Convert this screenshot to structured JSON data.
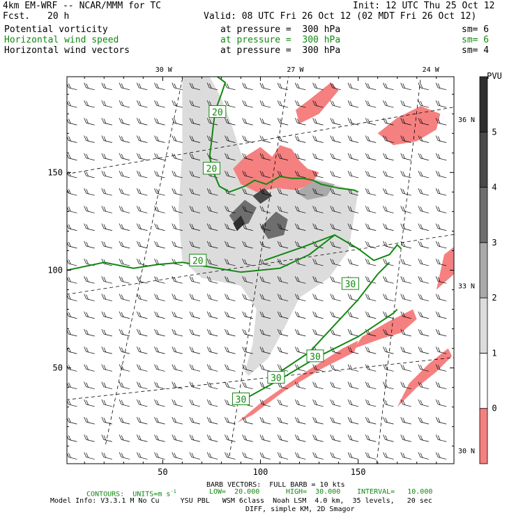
{
  "header": {
    "model_title": "4km EM-WRF -- NCAR/MMM for TC",
    "init": "Init: 12 UTC Thu 25 Oct 12",
    "fcst_label": "Fcst.",
    "fcst_value": "20 h",
    "valid": "Valid: 08 UTC Fri 26 Oct 12 (02 MDT Fri 26 Oct 12)",
    "fields": [
      {
        "name": "Potential vorticity",
        "level": "at pressure =  300 hPa",
        "sm": "sm= 6",
        "color": "#000000"
      },
      {
        "name": "Horizontal wind speed",
        "level": "at pressure =  300 hPa",
        "sm": "sm= 6",
        "color": "#118811"
      },
      {
        "name": "Horizontal wind vectors",
        "level": "at pressure =  300 hPa",
        "sm": "sm= 4",
        "color": "#000000"
      }
    ]
  },
  "footer": {
    "barb": "BARB VECTORS:  FULL BARB = 10 kts",
    "contours": "CONTOURS:  UNITS=m s",
    "contours_sup": "-1",
    "low": "LOW=  20.000",
    "high": "HIGH=  30.000",
    "interval": "INTERVAL=   10.000",
    "model_info": "Model Info: V3.3.1 M No Cu     YSU PBL   WSM 6class  Noah LSM  4.0 km,  35 levels,   20 sec",
    "diff": "DIFF, simple KM, 2D Smagor"
  },
  "chart_data": {
    "type": "heatmap",
    "x_ticks": [
      50,
      100,
      150
    ],
    "y_ticks": [
      50,
      100,
      150
    ],
    "xlim": [
      1,
      199
    ],
    "ylim": [
      1,
      199
    ],
    "lon_labels": [
      "30 W",
      "27 W",
      "24 W"
    ],
    "lat_labels": [
      "36 N",
      "33 N",
      "30 N"
    ],
    "colorbar": {
      "unit": "PVU",
      "ticks": [
        "0",
        "1",
        "2",
        "3",
        "4",
        "5"
      ],
      "bands": [
        {
          "from": -1,
          "to": 0,
          "color": "#f58080"
        },
        {
          "from": 0,
          "to": 1,
          "color": "#ffffff"
        },
        {
          "from": 1,
          "to": 2,
          "color": "#dcdcdc"
        },
        {
          "from": 2,
          "to": 3,
          "color": "#a9a9a9"
        },
        {
          "from": 3,
          "to": 4,
          "color": "#6e6e6e"
        },
        {
          "from": 4,
          "to": 5,
          "color": "#4a4a4a"
        },
        {
          "from": 5,
          "to": 6,
          "color": "#2e2e2e"
        }
      ]
    },
    "contour_labels": [
      {
        "text": "20",
        "x": 78,
        "y": 181
      },
      {
        "text": "20",
        "x": 75,
        "y": 152
      },
      {
        "text": "20",
        "x": 68,
        "y": 105
      },
      {
        "text": "30",
        "x": 146,
        "y": 93
      },
      {
        "text": "30",
        "x": 128,
        "y": 56
      },
      {
        "text": "30",
        "x": 108,
        "y": 45
      },
      {
        "text": "30",
        "x": 90,
        "y": 34
      }
    ],
    "series": [
      {
        "name": "20",
        "color": "#118811",
        "points": [
          [
            78,
            199
          ],
          [
            82,
            196
          ],
          [
            80,
            190
          ],
          [
            77,
            182
          ],
          [
            76,
            175
          ],
          [
            75,
            166
          ],
          [
            74,
            158
          ],
          [
            76,
            150
          ],
          [
            79,
            143
          ],
          [
            84,
            140
          ],
          [
            92,
            143
          ],
          [
            97,
            146
          ],
          [
            103,
            144
          ],
          [
            110,
            148
          ],
          [
            116,
            147
          ],
          [
            122,
            147
          ],
          [
            127,
            146
          ],
          [
            131,
            144
          ],
          [
            140,
            142
          ],
          [
            148,
            141
          ],
          [
            150,
            140
          ]
        ]
      },
      {
        "name": "20",
        "color": "#118811",
        "points": [
          [
            1,
            100
          ],
          [
            20,
            104
          ],
          [
            35,
            101
          ],
          [
            48,
            103
          ],
          [
            60,
            104
          ],
          [
            72,
            102
          ],
          [
            90,
            99
          ],
          [
            110,
            101
          ],
          [
            125,
            108
          ],
          [
            138,
            118
          ]
        ]
      },
      {
        "name": "30",
        "color": "#118811",
        "points": [
          [
            90,
            33
          ],
          [
            108,
            43
          ],
          [
            130,
            56
          ],
          [
            150,
            66
          ],
          [
            168,
            78
          ],
          [
            170,
            80
          ]
        ]
      },
      {
        "name": "30",
        "color": "#118811",
        "points": [
          [
            102,
            105
          ],
          [
            122,
            112
          ],
          [
            138,
            118
          ],
          [
            150,
            111
          ],
          [
            158,
            105
          ],
          [
            166,
            108
          ],
          [
            170,
            113
          ],
          [
            172,
            111
          ]
        ]
      },
      {
        "name": "30",
        "color": "#118811",
        "points": [
          [
            104,
            44
          ],
          [
            125,
            58
          ],
          [
            150,
            85
          ],
          [
            160,
            98
          ],
          [
            166,
            104
          ]
        ]
      }
    ],
    "pv_regions": [
      {
        "level": "1-2",
        "points": [
          [
            60,
            199
          ],
          [
            74,
            199
          ],
          [
            80,
            188
          ],
          [
            85,
            175
          ],
          [
            90,
            160
          ],
          [
            95,
            150
          ],
          [
            108,
            148
          ],
          [
            125,
            148
          ],
          [
            150,
            140
          ],
          [
            145,
            110
          ],
          [
            135,
            96
          ],
          [
            120,
            86
          ],
          [
            112,
            70
          ],
          [
            104,
            55
          ],
          [
            94,
            46
          ],
          [
            92,
            48
          ],
          [
            96,
            62
          ],
          [
            98,
            80
          ],
          [
            90,
            92
          ],
          [
            70,
            96
          ],
          [
            60,
            105
          ],
          [
            58,
            130
          ],
          [
            60,
            160
          ]
        ]
      },
      {
        "level": "-1-0",
        "points": [
          [
            86,
            152
          ],
          [
            92,
            158
          ],
          [
            100,
            163
          ],
          [
            106,
            158
          ],
          [
            110,
            164
          ],
          [
            116,
            162
          ],
          [
            120,
            156
          ],
          [
            124,
            152
          ],
          [
            130,
            150
          ],
          [
            126,
            144
          ],
          [
            118,
            141
          ],
          [
            108,
            142
          ],
          [
            98,
            140
          ],
          [
            90,
            144
          ]
        ]
      },
      {
        "level": "-1-0",
        "points": [
          [
            88,
            22
          ],
          [
            100,
            32
          ],
          [
            120,
            46
          ],
          [
            142,
            60
          ],
          [
            150,
            64
          ],
          [
            148,
            58
          ],
          [
            132,
            50
          ],
          [
            112,
            38
          ],
          [
            96,
            26
          ]
        ]
      },
      {
        "level": "-1-0",
        "points": [
          [
            148,
            60
          ],
          [
            162,
            65
          ],
          [
            172,
            68
          ],
          [
            180,
            75
          ],
          [
            178,
            80
          ],
          [
            166,
            74
          ],
          [
            152,
            66
          ]
        ]
      },
      {
        "level": "-1-0",
        "points": [
          [
            170,
            30
          ],
          [
            180,
            40
          ],
          [
            190,
            48
          ],
          [
            198,
            56
          ],
          [
            196,
            60
          ],
          [
            186,
            52
          ],
          [
            176,
            42
          ]
        ]
      },
      {
        "level": "-1-0",
        "points": [
          [
            160,
            170
          ],
          [
            170,
            178
          ],
          [
            182,
            184
          ],
          [
            192,
            180
          ],
          [
            190,
            172
          ],
          [
            180,
            166
          ],
          [
            168,
            164
          ]
        ]
      },
      {
        "level": "-1-0",
        "points": [
          [
            190,
            90
          ],
          [
            199,
            98
          ],
          [
            199,
            112
          ],
          [
            194,
            108
          ]
        ]
      },
      {
        "level": "-1-0",
        "points": [
          [
            120,
            175
          ],
          [
            130,
            180
          ],
          [
            140,
            192
          ],
          [
            136,
            196
          ],
          [
            126,
            188
          ],
          [
            118,
            182
          ]
        ]
      },
      {
        "level": "2-3",
        "points": [
          [
            118,
            140
          ],
          [
            128,
            146
          ],
          [
            138,
            144
          ],
          [
            134,
            138
          ],
          [
            124,
            136
          ]
        ]
      },
      {
        "level": "3-4",
        "points": [
          [
            84,
            128
          ],
          [
            92,
            136
          ],
          [
            98,
            132
          ],
          [
            94,
            124
          ],
          [
            88,
            122
          ]
        ]
      },
      {
        "level": "3-4",
        "points": [
          [
            100,
            122
          ],
          [
            108,
            130
          ],
          [
            114,
            126
          ],
          [
            112,
            118
          ],
          [
            104,
            116
          ]
        ]
      },
      {
        "level": "4-5",
        "points": [
          [
            96,
            138
          ],
          [
            102,
            142
          ],
          [
            106,
            138
          ],
          [
            100,
            134
          ]
        ]
      },
      {
        "level": "5-6",
        "points": [
          [
            86,
            124
          ],
          [
            90,
            128
          ],
          [
            92,
            124
          ],
          [
            88,
            120
          ]
        ]
      }
    ]
  }
}
